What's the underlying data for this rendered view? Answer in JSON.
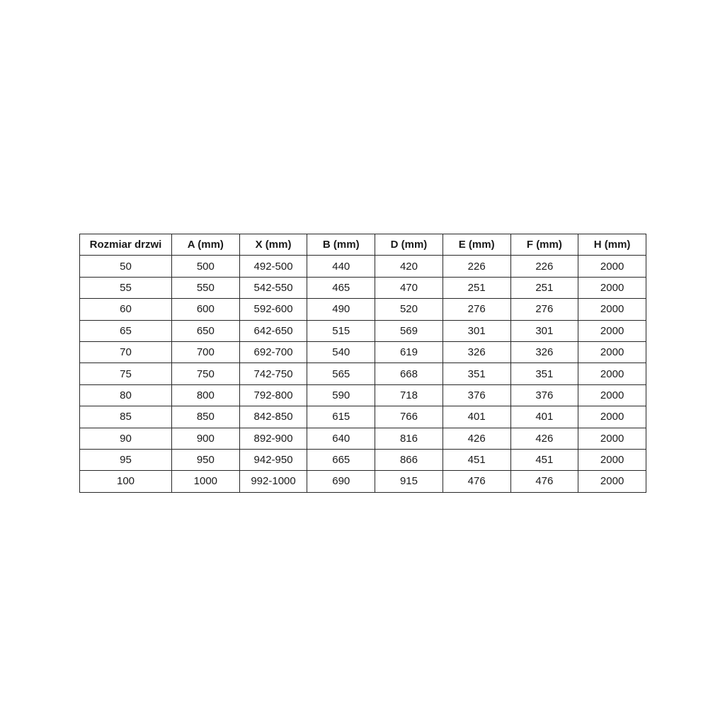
{
  "colors": {
    "background": "#ffffff",
    "border": "#262626",
    "text": "#1a1a1a"
  },
  "table": {
    "headers": [
      "Rozmiar drzwi",
      "A (mm)",
      "X (mm)",
      "B (mm)",
      "D (mm)",
      "E (mm)",
      "F (mm)",
      "H (mm)"
    ],
    "rows": [
      [
        "50",
        "500",
        "492-500",
        "440",
        "420",
        "226",
        "226",
        "2000"
      ],
      [
        "55",
        "550",
        "542-550",
        "465",
        "470",
        "251",
        "251",
        "2000"
      ],
      [
        "60",
        "600",
        "592-600",
        "490",
        "520",
        "276",
        "276",
        "2000"
      ],
      [
        "65",
        "650",
        "642-650",
        "515",
        "569",
        "301",
        "301",
        "2000"
      ],
      [
        "70",
        "700",
        "692-700",
        "540",
        "619",
        "326",
        "326",
        "2000"
      ],
      [
        "75",
        "750",
        "742-750",
        "565",
        "668",
        "351",
        "351",
        "2000"
      ],
      [
        "80",
        "800",
        "792-800",
        "590",
        "718",
        "376",
        "376",
        "2000"
      ],
      [
        "85",
        "850",
        "842-850",
        "615",
        "766",
        "401",
        "401",
        "2000"
      ],
      [
        "90",
        "900",
        "892-900",
        "640",
        "816",
        "426",
        "426",
        "2000"
      ],
      [
        "95",
        "950",
        "942-950",
        "665",
        "866",
        "451",
        "451",
        "2000"
      ],
      [
        "100",
        "1000",
        "992-1000",
        "690",
        "915",
        "476",
        "476",
        "2000"
      ]
    ]
  }
}
